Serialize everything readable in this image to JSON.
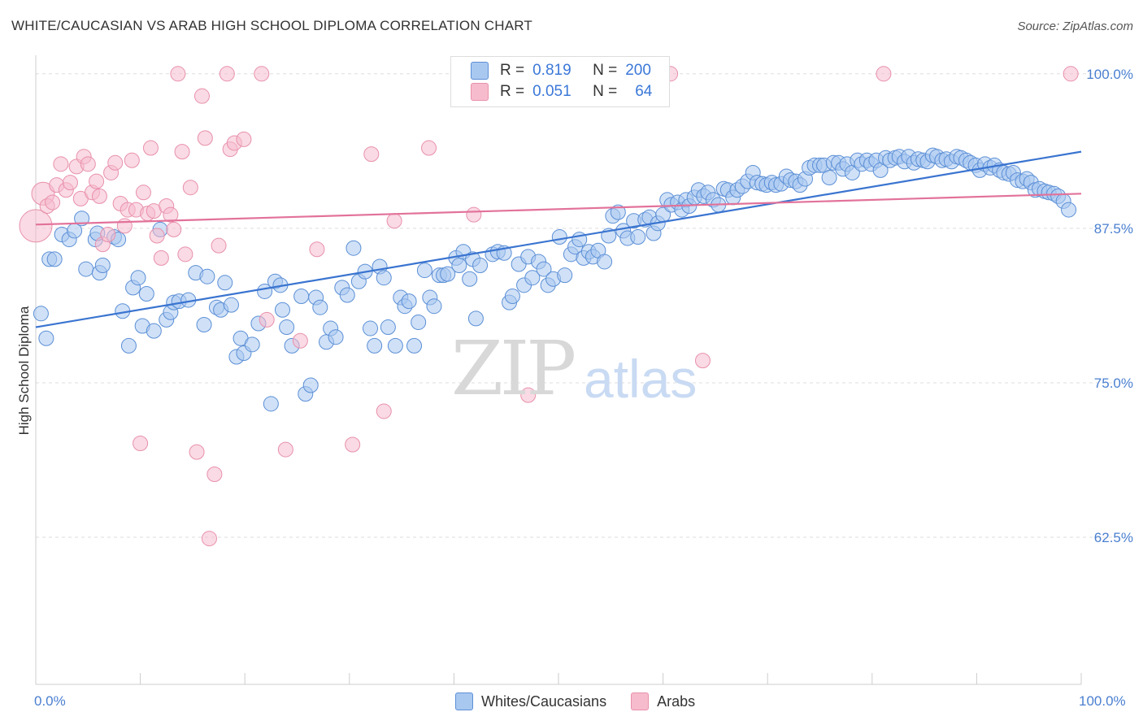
{
  "header": {
    "title": "WHITE/CAUCASIAN VS ARAB HIGH SCHOOL DIPLOMA CORRELATION CHART",
    "source": "Source: ZipAtlas.com"
  },
  "watermark": {
    "zip": "ZIP",
    "atlas": "atlas"
  },
  "legend_top": {
    "rows": [
      {
        "r_label": "R =",
        "r_value": "0.819",
        "n_label": "N =",
        "n_value": "200"
      },
      {
        "r_label": "R =",
        "r_value": "0.051",
        "n_label": "N =",
        "n_value": "64"
      }
    ]
  },
  "legend_bottom": {
    "items": [
      "Whites/Caucasians",
      "Arabs"
    ]
  },
  "colors": {
    "blue_fill": "#a9c8f0",
    "blue_stroke": "#5b8fd6",
    "blue_line": "#3a74d0",
    "pink_fill": "#f6bccd",
    "pink_stroke": "#e890ab",
    "pink_line": "#e2729a",
    "grid": "#dddddd",
    "tick_label": "#4a7fd0"
  },
  "chart_data": {
    "type": "scatter",
    "title": "WHITE/CAUCASIAN VS ARAB HIGH SCHOOL DIPLOMA CORRELATION CHART",
    "xlabel": "",
    "ylabel": "High School Diploma",
    "x_tick_labels": [
      "0.0%",
      "100.0%"
    ],
    "y_tick_labels": [
      "100.0%",
      "87.5%",
      "75.0%",
      "62.5%"
    ],
    "y_ticks": [
      100.0,
      87.5,
      75.0,
      62.5
    ],
    "xlim": [
      0,
      100
    ],
    "ylim": [
      50.6,
      101.5
    ],
    "grid": true,
    "legend_placement": "top-center",
    "series": [
      {
        "name": "Whites/Caucasians",
        "r": 0.819,
        "n": 200,
        "trend": {
          "x": [
            0,
            100
          ],
          "y": [
            79.5,
            93.7
          ]
        },
        "points": [
          [
            0.5,
            80.6
          ],
          [
            1.0,
            78.6
          ],
          [
            1.3,
            85.0
          ],
          [
            1.8,
            85.0
          ],
          [
            2.5,
            87.0
          ],
          [
            3.2,
            86.6
          ],
          [
            3.7,
            87.3
          ],
          [
            4.4,
            88.3
          ],
          [
            4.8,
            84.2
          ],
          [
            5.7,
            86.6
          ],
          [
            5.9,
            87.1
          ],
          [
            6.1,
            83.9
          ],
          [
            6.4,
            84.5
          ],
          [
            7.5,
            86.8
          ],
          [
            7.9,
            86.6
          ],
          [
            8.3,
            80.8
          ],
          [
            8.9,
            78.0
          ],
          [
            9.3,
            82.7
          ],
          [
            9.8,
            83.5
          ],
          [
            10.2,
            79.6
          ],
          [
            10.6,
            82.2
          ],
          [
            11.3,
            79.2
          ],
          [
            11.9,
            87.4
          ],
          [
            12.5,
            80.1
          ],
          [
            12.9,
            80.7
          ],
          [
            13.2,
            81.5
          ],
          [
            13.7,
            81.6
          ],
          [
            14.6,
            81.7
          ],
          [
            15.3,
            83.9
          ],
          [
            16.1,
            79.7
          ],
          [
            16.4,
            83.6
          ],
          [
            17.3,
            81.1
          ],
          [
            17.7,
            80.9
          ],
          [
            18.1,
            83.1
          ],
          [
            18.7,
            81.3
          ],
          [
            19.2,
            77.1
          ],
          [
            19.6,
            78.6
          ],
          [
            19.9,
            77.4
          ],
          [
            20.7,
            78.1
          ],
          [
            21.3,
            79.8
          ],
          [
            21.9,
            82.4
          ],
          [
            22.5,
            73.3
          ],
          [
            22.9,
            83.2
          ],
          [
            23.4,
            82.9
          ],
          [
            23.6,
            80.9
          ],
          [
            24.0,
            79.5
          ],
          [
            24.5,
            78.0
          ],
          [
            25.4,
            82.0
          ],
          [
            25.8,
            74.1
          ],
          [
            26.3,
            74.8
          ],
          [
            26.8,
            81.9
          ],
          [
            27.2,
            81.1
          ],
          [
            27.8,
            78.3
          ],
          [
            28.2,
            79.4
          ],
          [
            28.7,
            78.7
          ],
          [
            29.3,
            82.7
          ],
          [
            29.8,
            82.1
          ],
          [
            30.4,
            85.9
          ],
          [
            30.9,
            83.2
          ],
          [
            31.5,
            84.0
          ],
          [
            32.0,
            79.4
          ],
          [
            32.4,
            78.0
          ],
          [
            32.9,
            84.4
          ],
          [
            33.3,
            83.5
          ],
          [
            33.7,
            79.5
          ],
          [
            34.4,
            78.0
          ],
          [
            34.9,
            81.9
          ],
          [
            35.3,
            81.2
          ],
          [
            35.7,
            81.6
          ],
          [
            36.2,
            78.0
          ],
          [
            36.6,
            79.9
          ],
          [
            37.2,
            84.1
          ],
          [
            37.7,
            81.9
          ],
          [
            38.1,
            81.2
          ],
          [
            38.6,
            83.7
          ],
          [
            39.0,
            83.7
          ],
          [
            39.4,
            83.8
          ],
          [
            40.2,
            85.1
          ],
          [
            40.5,
            84.5
          ],
          [
            40.9,
            85.6
          ],
          [
            41.5,
            83.4
          ],
          [
            41.8,
            85.0
          ],
          [
            42.1,
            80.2
          ],
          [
            42.5,
            84.5
          ],
          [
            43.7,
            85.4
          ],
          [
            44.2,
            85.6
          ],
          [
            44.8,
            85.5
          ],
          [
            45.3,
            81.5
          ],
          [
            45.6,
            82.0
          ],
          [
            46.2,
            84.6
          ],
          [
            46.7,
            82.9
          ],
          [
            47.1,
            85.2
          ],
          [
            47.5,
            83.5
          ],
          [
            48.1,
            84.8
          ],
          [
            48.6,
            84.2
          ],
          [
            49.0,
            82.9
          ],
          [
            49.5,
            83.4
          ],
          [
            50.1,
            86.8
          ],
          [
            50.6,
            83.7
          ],
          [
            51.2,
            85.4
          ],
          [
            51.6,
            86.0
          ],
          [
            52.0,
            86.6
          ],
          [
            52.4,
            85.1
          ],
          [
            52.9,
            85.6
          ],
          [
            53.3,
            85.2
          ],
          [
            53.8,
            85.7
          ],
          [
            54.4,
            84.8
          ],
          [
            54.8,
            86.9
          ],
          [
            55.2,
            88.5
          ],
          [
            55.7,
            88.8
          ],
          [
            56.2,
            87.3
          ],
          [
            56.6,
            86.7
          ],
          [
            57.2,
            88.1
          ],
          [
            57.6,
            86.8
          ],
          [
            58.3,
            88.2
          ],
          [
            58.7,
            88.4
          ],
          [
            59.1,
            87.1
          ],
          [
            59.5,
            87.9
          ],
          [
            60.0,
            88.6
          ],
          [
            60.4,
            89.8
          ],
          [
            60.8,
            89.4
          ],
          [
            61.4,
            89.6
          ],
          [
            61.8,
            89.0
          ],
          [
            62.2,
            89.8
          ],
          [
            62.5,
            89.3
          ],
          [
            63.0,
            90.0
          ],
          [
            63.4,
            90.6
          ],
          [
            63.9,
            90.1
          ],
          [
            64.3,
            90.4
          ],
          [
            64.8,
            89.8
          ],
          [
            65.3,
            89.4
          ],
          [
            65.8,
            90.7
          ],
          [
            66.2,
            90.6
          ],
          [
            66.7,
            90.0
          ],
          [
            67.1,
            90.6
          ],
          [
            67.6,
            90.9
          ],
          [
            68.1,
            91.3
          ],
          [
            68.6,
            92.0
          ],
          [
            69.0,
            91.2
          ],
          [
            69.5,
            91.1
          ],
          [
            69.9,
            91.0
          ],
          [
            70.4,
            91.2
          ],
          [
            70.8,
            91.0
          ],
          [
            71.3,
            91.1
          ],
          [
            71.8,
            91.7
          ],
          [
            72.2,
            91.4
          ],
          [
            72.7,
            91.3
          ],
          [
            73.1,
            91.0
          ],
          [
            73.6,
            91.5
          ],
          [
            74.0,
            92.4
          ],
          [
            74.5,
            92.6
          ],
          [
            75.0,
            92.6
          ],
          [
            75.4,
            92.6
          ],
          [
            75.9,
            91.6
          ],
          [
            76.3,
            92.8
          ],
          [
            76.8,
            92.8
          ],
          [
            77.2,
            92.3
          ],
          [
            77.6,
            92.7
          ],
          [
            78.1,
            92.0
          ],
          [
            78.6,
            93.0
          ],
          [
            79.0,
            92.7
          ],
          [
            79.5,
            93.0
          ],
          [
            79.9,
            92.7
          ],
          [
            80.4,
            93.0
          ],
          [
            80.8,
            92.2
          ],
          [
            81.3,
            93.2
          ],
          [
            81.7,
            93.0
          ],
          [
            82.2,
            93.2
          ],
          [
            82.6,
            93.3
          ],
          [
            83.1,
            92.9
          ],
          [
            83.5,
            93.3
          ],
          [
            84.0,
            92.8
          ],
          [
            84.4,
            93.1
          ],
          [
            84.9,
            93.0
          ],
          [
            85.3,
            92.9
          ],
          [
            85.8,
            93.4
          ],
          [
            86.2,
            93.3
          ],
          [
            86.7,
            93.0
          ],
          [
            87.1,
            93.1
          ],
          [
            87.6,
            92.9
          ],
          [
            88.1,
            93.3
          ],
          [
            88.5,
            93.2
          ],
          [
            89.0,
            93.0
          ],
          [
            89.4,
            92.8
          ],
          [
            89.9,
            92.6
          ],
          [
            90.3,
            92.2
          ],
          [
            90.8,
            92.7
          ],
          [
            91.3,
            92.4
          ],
          [
            91.7,
            92.6
          ],
          [
            92.2,
            92.2
          ],
          [
            92.6,
            92.0
          ],
          [
            93.1,
            91.9
          ],
          [
            93.5,
            92.0
          ],
          [
            93.9,
            91.4
          ],
          [
            94.4,
            91.3
          ],
          [
            94.8,
            91.5
          ],
          [
            95.2,
            91.2
          ],
          [
            95.6,
            90.6
          ],
          [
            96.0,
            90.7
          ],
          [
            96.5,
            90.5
          ],
          [
            96.9,
            90.4
          ],
          [
            97.4,
            90.3
          ],
          [
            97.8,
            90.1
          ],
          [
            98.3,
            89.7
          ],
          [
            98.8,
            89.0
          ]
        ]
      },
      {
        "name": "Arabs",
        "r": 0.051,
        "n": 64,
        "trend": {
          "x": [
            0,
            100
          ],
          "y": [
            87.8,
            90.3
          ]
        },
        "points": [
          [
            0.0,
            87.7
          ],
          [
            0.7,
            90.3
          ],
          [
            1.1,
            89.3
          ],
          [
            1.6,
            89.6
          ],
          [
            2.0,
            91.0
          ],
          [
            2.4,
            92.7
          ],
          [
            2.9,
            90.6
          ],
          [
            3.3,
            91.2
          ],
          [
            3.9,
            92.5
          ],
          [
            4.3,
            89.9
          ],
          [
            4.6,
            93.3
          ],
          [
            5.0,
            92.7
          ],
          [
            5.4,
            90.4
          ],
          [
            5.8,
            91.3
          ],
          [
            6.1,
            90.1
          ],
          [
            6.4,
            86.2
          ],
          [
            6.9,
            87.0
          ],
          [
            7.2,
            92.0
          ],
          [
            7.6,
            92.8
          ],
          [
            8.1,
            89.5
          ],
          [
            8.5,
            87.7
          ],
          [
            8.8,
            89.0
          ],
          [
            9.2,
            93.0
          ],
          [
            9.6,
            89.0
          ],
          [
            10.0,
            70.1
          ],
          [
            10.3,
            90.4
          ],
          [
            10.7,
            88.7
          ],
          [
            11.0,
            94.0
          ],
          [
            11.3,
            88.9
          ],
          [
            11.6,
            86.9
          ],
          [
            12.0,
            85.1
          ],
          [
            12.5,
            89.3
          ],
          [
            12.9,
            88.6
          ],
          [
            13.2,
            87.4
          ],
          [
            13.6,
            100.0
          ],
          [
            14.0,
            93.7
          ],
          [
            14.3,
            85.4
          ],
          [
            14.8,
            90.8
          ],
          [
            15.4,
            69.4
          ],
          [
            15.9,
            98.2
          ],
          [
            16.2,
            94.8
          ],
          [
            16.6,
            62.4
          ],
          [
            17.1,
            67.6
          ],
          [
            17.5,
            86.1
          ],
          [
            18.3,
            100.0
          ],
          [
            18.6,
            93.9
          ],
          [
            19.0,
            94.4
          ],
          [
            19.9,
            94.7
          ],
          [
            21.6,
            100.0
          ],
          [
            22.1,
            80.1
          ],
          [
            23.9,
            69.6
          ],
          [
            25.3,
            78.4
          ],
          [
            26.9,
            85.8
          ],
          [
            30.3,
            70.0
          ],
          [
            32.1,
            93.5
          ],
          [
            33.3,
            72.7
          ],
          [
            34.3,
            88.1
          ],
          [
            37.6,
            94.0
          ],
          [
            41.9,
            88.6
          ],
          [
            47.1,
            74.0
          ],
          [
            60.7,
            100.0
          ],
          [
            63.8,
            76.8
          ],
          [
            81.1,
            100.0
          ],
          [
            99.0,
            100.0
          ]
        ]
      }
    ]
  }
}
